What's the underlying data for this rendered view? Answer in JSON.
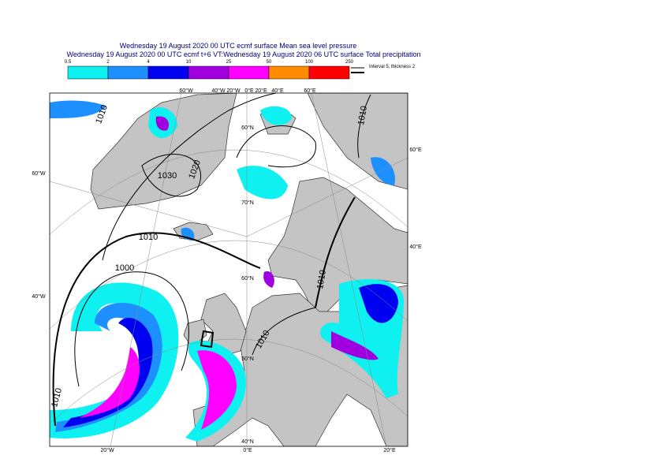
{
  "header": {
    "title_line_1": "Wednesday 19 August 2020 00 UTC ecmf surface  Mean sea level pressure",
    "title_line_2": "Wednesday 19 August 2020 00 UTC ecmf t+6 VT:Wednesday 19 August 2020 06 UTC surface  Total precipitation"
  },
  "legend": {
    "labels": [
      "0.5",
      "2",
      "4",
      "10",
      "25",
      "50",
      "100",
      "250"
    ],
    "colors": [
      "#0ff0f0",
      "#1e8fff",
      "#0000f0",
      "#a000e0",
      "#ff00ff",
      "#ff8c00",
      "#ff0000"
    ],
    "contour_note": "Interval 5, thickness 2"
  },
  "map": {
    "top_labels": [
      "60°W",
      "40°W",
      "20°W",
      "0°E",
      "20°E",
      "40°E",
      "60°E"
    ],
    "left_labels": [
      "60°W",
      "40°W"
    ],
    "right_labels": [
      "60°E",
      "40°E"
    ],
    "bottom_labels": [
      "20°W",
      "0°E",
      "20°E"
    ],
    "latitude_labels": [
      "60°N",
      "70°N",
      "60°N",
      "50°N",
      "40°N"
    ],
    "isobar_labels": [
      "1010",
      "1030",
      "1020",
      "1010",
      "1000",
      "1010",
      "1010",
      "1010",
      "1010"
    ]
  }
}
